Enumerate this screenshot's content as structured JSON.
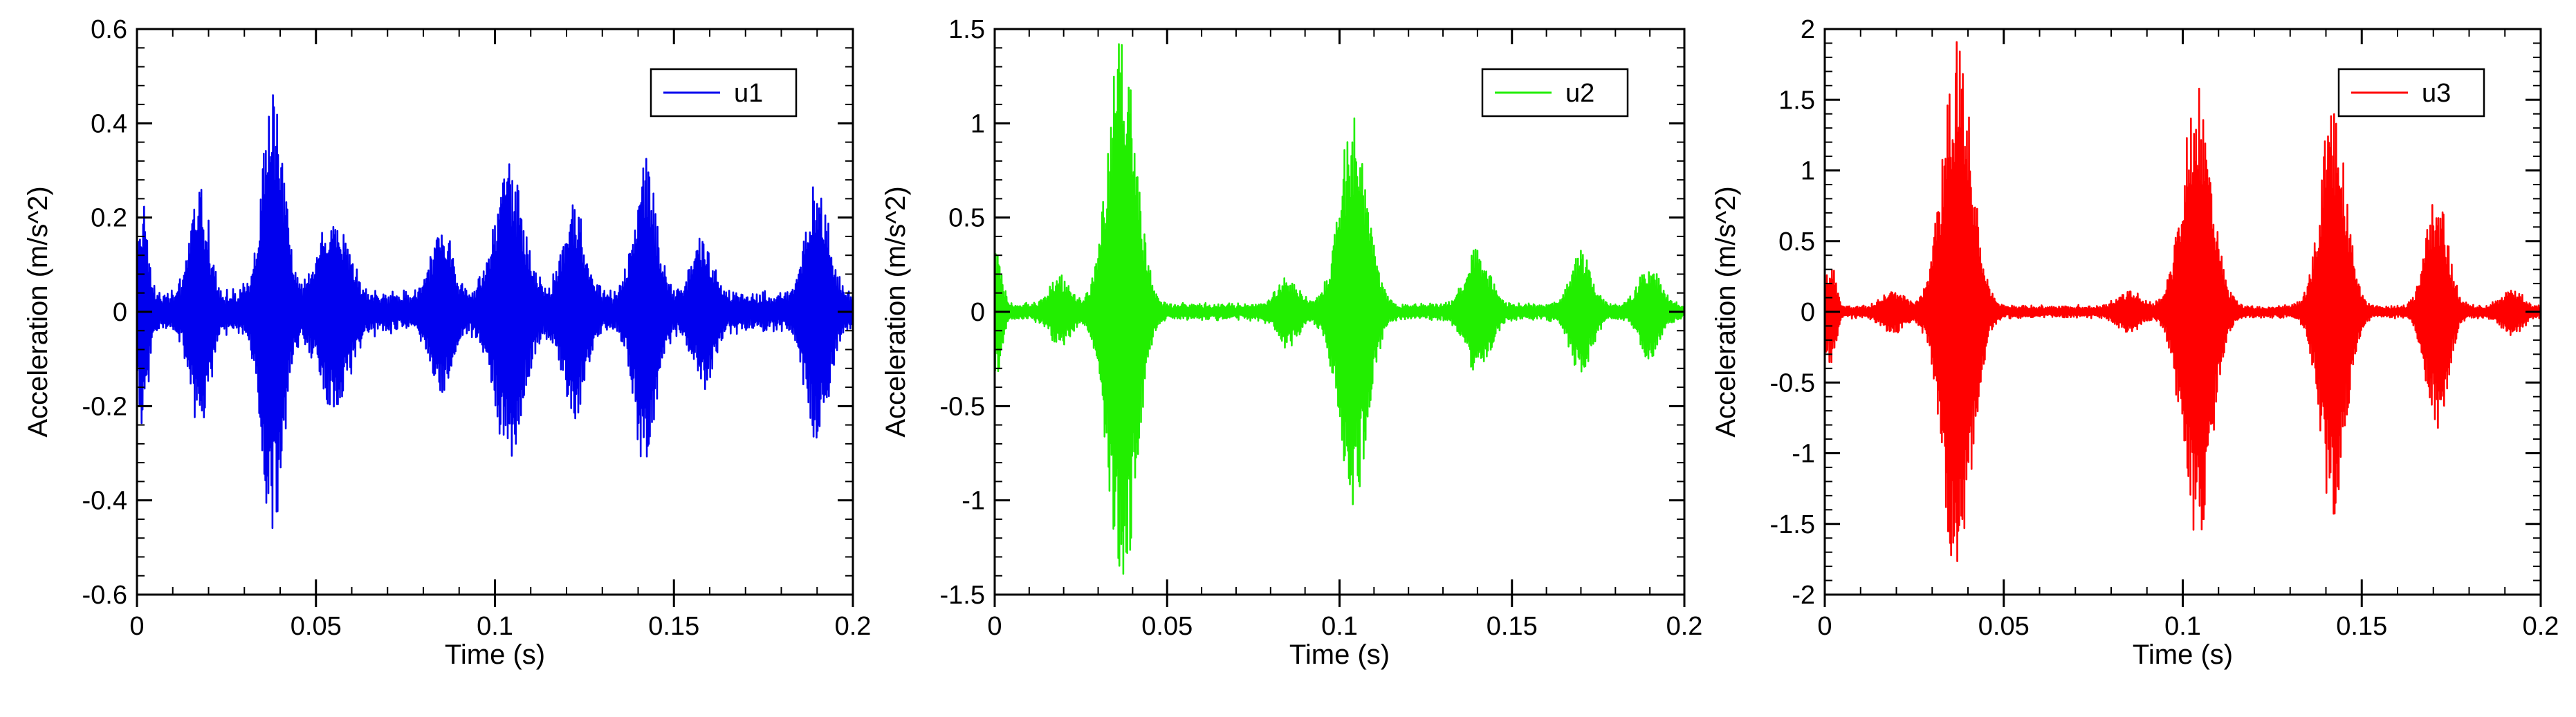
{
  "chart_data": [
    {
      "type": "line",
      "xlabel": "Time (s)",
      "ylabel": "Acceleration (m/s^2)",
      "xlim": [
        0,
        0.2
      ],
      "ylim": [
        -0.6,
        0.6
      ],
      "xticks": [
        "0",
        "0.05",
        "0.1",
        "0.15",
        "0.2"
      ],
      "yticks": [
        "-0.6",
        "-0.4",
        "-0.2",
        "0",
        "0.2",
        "0.4",
        "0.6"
      ],
      "grid": false,
      "legend_position": "top-right",
      "series": [
        {
          "name": "u1",
          "color": "#0000ee",
          "baseline_amplitude": 0.05,
          "bursts": [
            {
              "t": 0.0015,
              "amp": 0.2,
              "width": 0.0015
            },
            {
              "t": 0.0175,
              "amp": 0.24,
              "width": 0.0025
            },
            {
              "t": 0.038,
              "amp": 0.44,
              "width": 0.003
            },
            {
              "t": 0.055,
              "amp": 0.18,
              "width": 0.004
            },
            {
              "t": 0.085,
              "amp": 0.15,
              "width": 0.003
            },
            {
              "t": 0.104,
              "amp": 0.28,
              "width": 0.004
            },
            {
              "t": 0.122,
              "amp": 0.2,
              "width": 0.003
            },
            {
              "t": 0.142,
              "amp": 0.3,
              "width": 0.003
            },
            {
              "t": 0.158,
              "amp": 0.12,
              "width": 0.003
            },
            {
              "t": 0.19,
              "amp": 0.25,
              "width": 0.003
            }
          ]
        }
      ]
    },
    {
      "type": "line",
      "xlabel": "Time (s)",
      "ylabel": "Acceleration (m/s^2)",
      "xlim": [
        0,
        0.2
      ],
      "ylim": [
        -1.5,
        1.5
      ],
      "xticks": [
        "0",
        "0.05",
        "0.1",
        "0.15",
        "0.2"
      ],
      "yticks": [
        "-1.5",
        "-1",
        "-0.5",
        "0",
        "0.5",
        "1",
        "1.5"
      ],
      "grid": false,
      "legend_position": "top-right",
      "series": [
        {
          "name": "u2",
          "color": "#22ee00",
          "baseline_amplitude": 0.05,
          "bursts": [
            {
              "t": 0.0005,
              "amp": 0.3,
              "width": 0.0015
            },
            {
              "t": 0.019,
              "amp": 0.15,
              "width": 0.003
            },
            {
              "t": 0.037,
              "amp": 1.45,
              "width": 0.004
            },
            {
              "t": 0.085,
              "amp": 0.15,
              "width": 0.003
            },
            {
              "t": 0.104,
              "amp": 1.03,
              "width": 0.004
            },
            {
              "t": 0.14,
              "amp": 0.3,
              "width": 0.0035
            },
            {
              "t": 0.17,
              "amp": 0.3,
              "width": 0.003
            },
            {
              "t": 0.19,
              "amp": 0.22,
              "width": 0.003
            }
          ]
        }
      ]
    },
    {
      "type": "line",
      "xlabel": "Time (s)",
      "ylabel": "Acceleration (m/s^2)",
      "xlim": [
        0,
        0.2
      ],
      "ylim": [
        -2,
        2
      ],
      "xticks": [
        "0",
        "0.05",
        "0.1",
        "0.15",
        "0.2"
      ],
      "yticks": [
        "-2",
        "-1.5",
        "-1",
        "-0.5",
        "0",
        "0.5",
        "1",
        "1.5",
        "2"
      ],
      "grid": false,
      "legend_position": "top-right",
      "series": [
        {
          "name": "u3",
          "color": "#ff0000",
          "baseline_amplitude": 0.05,
          "bursts": [
            {
              "t": 0.0015,
              "amp": 0.32,
              "width": 0.0015
            },
            {
              "t": 0.019,
              "amp": 0.12,
              "width": 0.003
            },
            {
              "t": 0.037,
              "amp": 1.9,
              "width": 0.004
            },
            {
              "t": 0.085,
              "amp": 0.12,
              "width": 0.003
            },
            {
              "t": 0.104,
              "amp": 1.6,
              "width": 0.004
            },
            {
              "t": 0.142,
              "amp": 1.45,
              "width": 0.0035
            },
            {
              "t": 0.171,
              "amp": 0.8,
              "width": 0.003
            },
            {
              "t": 0.192,
              "amp": 0.12,
              "width": 0.003
            }
          ]
        }
      ]
    }
  ]
}
